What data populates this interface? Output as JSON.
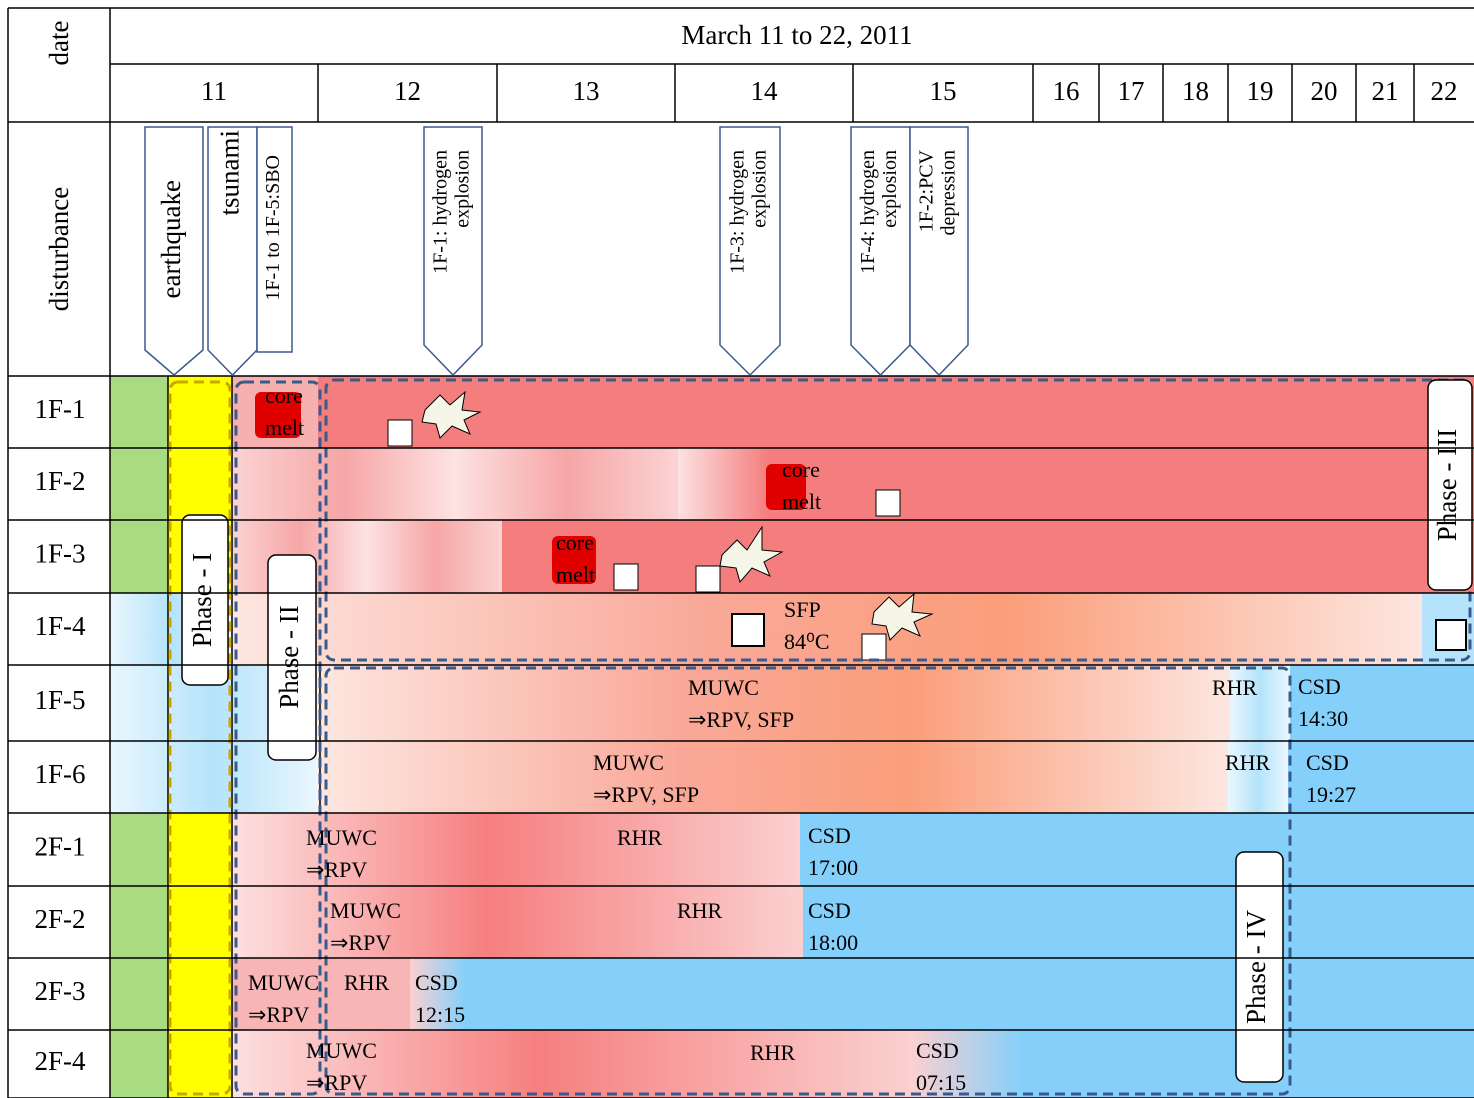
{
  "title": "March 11 to 22, 2011",
  "row_headers": {
    "date": "date",
    "disturbance": "disturbance"
  },
  "days": [
    "11",
    "12",
    "13",
    "14",
    "15",
    "16",
    "17",
    "18",
    "19",
    "20",
    "21",
    "22"
  ],
  "events": [
    {
      "lines": [
        "earthquake"
      ]
    },
    {
      "lines": [
        "tsunami"
      ]
    },
    {
      "lines": [
        "1F-1 to 1F-5:SBO"
      ]
    },
    {
      "lines": [
        "1F-1:  hydrogen",
        "explosion"
      ]
    },
    {
      "lines": [
        "1F-3: hydrogen",
        "explosion"
      ]
    },
    {
      "lines": [
        "1F-4: hydrogen",
        "explosion"
      ]
    },
    {
      "lines": [
        "1F-2:PCV",
        "depression"
      ]
    }
  ],
  "units": [
    "1F-1",
    "1F-2",
    "1F-3",
    "1F-4",
    "1F-5",
    "1F-6",
    "2F-1",
    "2F-2",
    "2F-3",
    "2F-4"
  ],
  "phases": [
    "Phase - I",
    "Phase - II",
    "Phase - III",
    "Phase - IV"
  ],
  "annotations": [
    {
      "lines": [
        "core",
        "melt"
      ]
    },
    {
      "lines": [
        "core",
        "melt"
      ]
    },
    {
      "lines": [
        "core",
        "melt"
      ]
    },
    {
      "lines": [
        "SFP",
        "84⁰C"
      ]
    },
    {
      "lines": [
        "MUWC",
        "⇒RPV, SFP"
      ]
    },
    {
      "lines": [
        "RHR"
      ]
    },
    {
      "lines": [
        "CSD",
        "14:30"
      ]
    },
    {
      "lines": [
        "MUWC",
        "⇒RPV, SFP"
      ]
    },
    {
      "lines": [
        "RHR"
      ]
    },
    {
      "lines": [
        "CSD",
        "19:27"
      ]
    },
    {
      "lines": [
        "MUWC",
        "⇒RPV"
      ]
    },
    {
      "lines": [
        "RHR"
      ]
    },
    {
      "lines": [
        "CSD",
        "17:00"
      ]
    },
    {
      "lines": [
        "MUWC",
        "⇒RPV"
      ]
    },
    {
      "lines": [
        "RHR"
      ]
    },
    {
      "lines": [
        "CSD",
        "18:00"
      ]
    },
    {
      "lines": [
        "MUWC",
        "⇒RPV"
      ]
    },
    {
      "lines": [
        "RHR"
      ]
    },
    {
      "lines": [
        "CSD",
        "12:15"
      ]
    },
    {
      "lines": [
        "MUWC",
        "⇒RPV"
      ]
    },
    {
      "lines": [
        "RHR"
      ]
    },
    {
      "lines": [
        "CSD",
        "07:15"
      ]
    }
  ]
}
